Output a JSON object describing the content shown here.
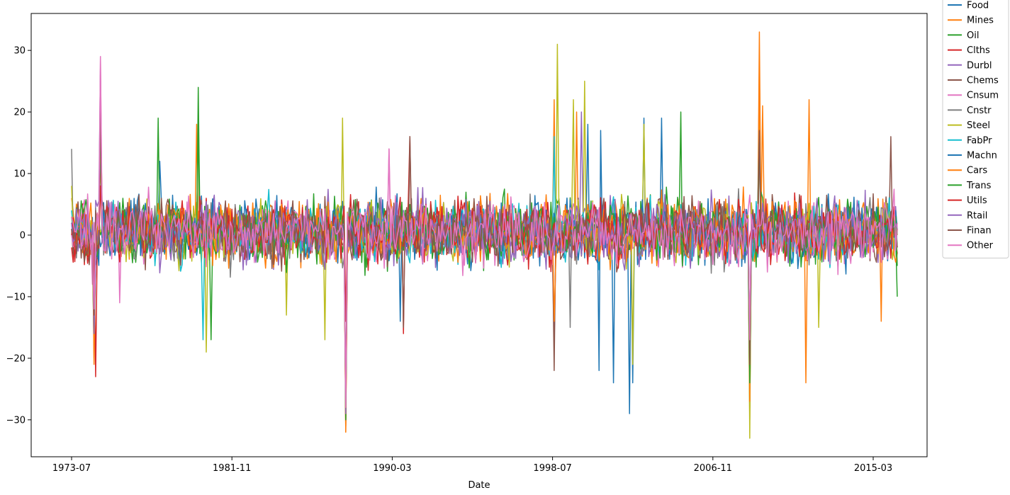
{
  "chart_data": {
    "type": "line",
    "title": "",
    "xlabel": "Date",
    "ylabel": "",
    "x_ticks": [
      "1973-07",
      "1981-11",
      "1990-03",
      "1998-07",
      "2006-11",
      "2015-03"
    ],
    "x_range": [
      "1973-07",
      "2016-06"
    ],
    "ylim": [
      -36,
      36
    ],
    "y_ticks": [
      -30,
      -20,
      -10,
      0,
      10,
      20,
      30
    ],
    "legend_position": "outside-top-right",
    "grid": false,
    "colors": {
      "Food": "#1f77b4",
      "Mines": "#ff7f0e",
      "Oil": "#2ca02c",
      "Clths": "#d62728",
      "Durbl": "#9467bd",
      "Chems": "#8c564b",
      "Cnsum": "#e377c2",
      "Cnstr": "#7f7f7f",
      "Steel": "#bcbd22",
      "FabPr": "#17becf",
      "Machn": "#1f77b4",
      "Cars": "#ff7f0e",
      "Trans": "#2ca02c",
      "Utils": "#d62728",
      "Rtail": "#9467bd",
      "Finan": "#8c564b",
      "Other": "#e377c2"
    },
    "series": [
      {
        "name": "Food",
        "points": [
          [
            "1973-07",
            1
          ],
          [
            "1974-09",
            -12
          ],
          [
            "1978-02",
            12
          ],
          [
            "1987-10",
            -30
          ],
          [
            "1990-08",
            -14
          ],
          [
            "2000-05",
            18
          ],
          [
            "2001-09",
            -24
          ],
          [
            "2002-07",
            -29
          ],
          [
            "2002-09",
            -24
          ],
          [
            "2003-04",
            19
          ],
          [
            "2004-03",
            19
          ],
          [
            "2008-10",
            -17
          ],
          [
            "2016-06",
            1
          ]
        ]
      },
      {
        "name": "Mines",
        "points": [
          [
            "1973-07",
            6
          ],
          [
            "1974-09",
            -20
          ],
          [
            "1975-01",
            12
          ],
          [
            "1980-01",
            18
          ],
          [
            "1987-10",
            -32
          ],
          [
            "1998-08",
            22
          ],
          [
            "1999-10",
            20
          ],
          [
            "2008-10",
            -30
          ],
          [
            "2009-04",
            33
          ],
          [
            "2009-06",
            21
          ],
          [
            "2011-09",
            -24
          ],
          [
            "2011-11",
            22
          ],
          [
            "2015-08",
            -14
          ],
          [
            "2016-06",
            2
          ]
        ]
      },
      {
        "name": "Oil",
        "points": [
          [
            "1973-07",
            3
          ],
          [
            "1974-09",
            -18
          ],
          [
            "1978-01",
            19
          ],
          [
            "1980-02",
            24
          ],
          [
            "1980-10",
            -17
          ],
          [
            "1987-10",
            -29
          ],
          [
            "2005-03",
            20
          ],
          [
            "2008-10",
            -28
          ],
          [
            "2016-06",
            -10
          ]
        ]
      },
      {
        "name": "Clths",
        "points": [
          [
            "1973-07",
            -2
          ],
          [
            "1974-10",
            -23
          ],
          [
            "1975-01",
            14
          ],
          [
            "1987-10",
            -31
          ],
          [
            "1990-10",
            -16
          ],
          [
            "1991-02",
            16
          ],
          [
            "2008-10",
            -18
          ],
          [
            "2009-04",
            17
          ],
          [
            "2016-06",
            -3
          ]
        ]
      },
      {
        "name": "Durbl",
        "points": [
          [
            "1973-07",
            2
          ],
          [
            "1974-09",
            -17
          ],
          [
            "1975-01",
            27
          ],
          [
            "1987-10",
            -29
          ],
          [
            "1998-08",
            -18
          ],
          [
            "2000-01",
            20
          ],
          [
            "2008-10",
            -20
          ],
          [
            "2009-04",
            16
          ],
          [
            "2016-06",
            0
          ]
        ]
      },
      {
        "name": "Chems",
        "points": [
          [
            "1973-07",
            1
          ],
          [
            "1974-09",
            -12
          ],
          [
            "1975-01",
            21
          ],
          [
            "1987-10",
            -28
          ],
          [
            "1998-08",
            -22
          ],
          [
            "2008-10",
            -19
          ],
          [
            "2009-04",
            17
          ],
          [
            "2016-02",
            16
          ],
          [
            "2016-06",
            -2
          ]
        ]
      },
      {
        "name": "Cnsum",
        "points": [
          [
            "1973-07",
            0
          ],
          [
            "1974-08",
            -8
          ],
          [
            "1975-01",
            29
          ],
          [
            "1976-01",
            -11
          ],
          [
            "1987-10",
            -28
          ],
          [
            "1990-01",
            14
          ],
          [
            "2016-06",
            1
          ]
        ]
      },
      {
        "name": "Cnstr",
        "points": [
          [
            "1973-07",
            14
          ],
          [
            "1974-09",
            -14
          ],
          [
            "1975-01",
            15
          ],
          [
            "1987-10",
            -29
          ],
          [
            "1999-06",
            -15
          ],
          [
            "2008-10",
            -22
          ],
          [
            "2009-04",
            18
          ],
          [
            "2016-06",
            -2
          ]
        ]
      },
      {
        "name": "Steel",
        "points": [
          [
            "1973-07",
            8
          ],
          [
            "1974-09",
            -13
          ],
          [
            "1980-07",
            -19
          ],
          [
            "1984-09",
            -13
          ],
          [
            "1986-09",
            -17
          ],
          [
            "1987-08",
            19
          ],
          [
            "1987-10",
            -31
          ],
          [
            "1998-10",
            31
          ],
          [
            "1999-08",
            22
          ],
          [
            "2000-03",
            25
          ],
          [
            "2002-09",
            -21
          ],
          [
            "2003-04",
            18
          ],
          [
            "2008-10",
            -33
          ],
          [
            "2009-04",
            22
          ],
          [
            "2012-05",
            -15
          ],
          [
            "2016-06",
            0
          ]
        ]
      },
      {
        "name": "FabPr",
        "points": [
          [
            "1973-07",
            4
          ],
          [
            "1974-09",
            -14
          ],
          [
            "1975-01",
            16
          ],
          [
            "1980-05",
            -17
          ],
          [
            "1987-10",
            -30
          ],
          [
            "1998-08",
            16
          ],
          [
            "2008-10",
            -25
          ],
          [
            "2016-06",
            1
          ]
        ]
      },
      {
        "name": "Machn",
        "points": [
          [
            "1973-07",
            2
          ],
          [
            "1974-09",
            -15
          ],
          [
            "1975-01",
            18
          ],
          [
            "1987-10",
            -29
          ],
          [
            "2000-12",
            -22
          ],
          [
            "2001-01",
            17
          ],
          [
            "2008-10",
            -20
          ],
          [
            "2016-06",
            1
          ]
        ]
      },
      {
        "name": "Cars",
        "points": [
          [
            "1973-07",
            3
          ],
          [
            "1974-09",
            -21
          ],
          [
            "1975-01",
            17
          ],
          [
            "1987-10",
            -32
          ],
          [
            "1998-08",
            -14
          ],
          [
            "2008-10",
            -27
          ],
          [
            "2009-04",
            28
          ],
          [
            "2016-06",
            -3
          ]
        ]
      },
      {
        "name": "Trans",
        "points": [
          [
            "1973-07",
            2
          ],
          [
            "1974-09",
            -16
          ],
          [
            "1975-01",
            19
          ],
          [
            "1980-02",
            18
          ],
          [
            "1987-10",
            -30
          ],
          [
            "2008-10",
            -24
          ],
          [
            "2009-04",
            16
          ],
          [
            "2016-06",
            -5
          ]
        ]
      },
      {
        "name": "Utils",
        "points": [
          [
            "1973-07",
            0
          ],
          [
            "1974-09",
            -10
          ],
          [
            "1975-01",
            8
          ],
          [
            "1987-10",
            -14
          ],
          [
            "2016-06",
            1
          ]
        ]
      },
      {
        "name": "Rtail",
        "points": [
          [
            "1973-07",
            2
          ],
          [
            "1974-09",
            -16
          ],
          [
            "1975-01",
            26
          ],
          [
            "1987-10",
            -29
          ],
          [
            "2008-10",
            -15
          ],
          [
            "2016-06",
            1
          ]
        ]
      },
      {
        "name": "Finan",
        "points": [
          [
            "1973-07",
            1
          ],
          [
            "1974-09",
            -13
          ],
          [
            "1975-01",
            20
          ],
          [
            "1987-10",
            -28
          ],
          [
            "1990-10",
            -15
          ],
          [
            "1991-02",
            16
          ],
          [
            "2008-10",
            -21
          ],
          [
            "2009-04",
            17
          ],
          [
            "2016-06",
            -2
          ]
        ]
      },
      {
        "name": "Other",
        "points": [
          [
            "1973-07",
            3
          ],
          [
            "1974-09",
            -12
          ],
          [
            "1975-01",
            29
          ],
          [
            "1987-10",
            -28
          ],
          [
            "1990-01",
            14
          ],
          [
            "2008-10",
            -17
          ],
          [
            "2016-06",
            2
          ]
        ]
      }
    ]
  }
}
